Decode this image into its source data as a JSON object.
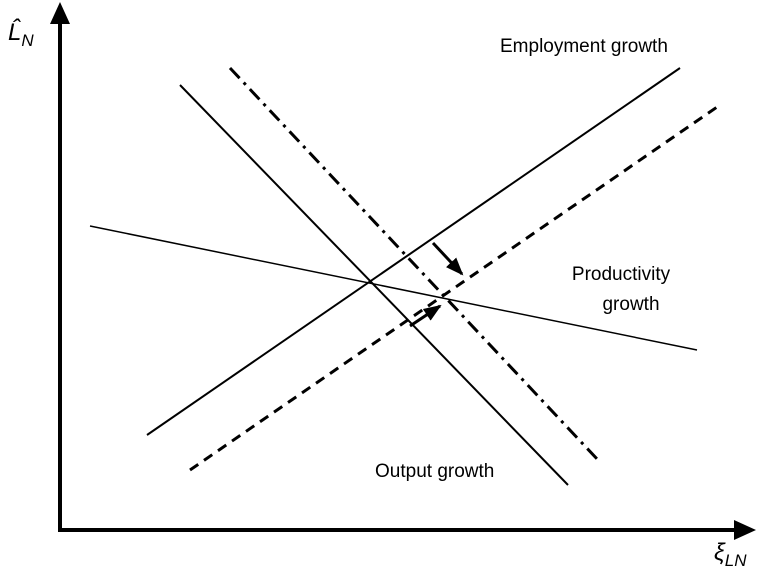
{
  "axes": {
    "y_label": {
      "base": "L̂",
      "sub": "N"
    },
    "x_label": {
      "base": "ξ",
      "sub": "LN"
    }
  },
  "labels": {
    "employment": "Employment growth",
    "productivity": [
      "Productivity",
      "growth"
    ],
    "output": "Output growth"
  }
}
